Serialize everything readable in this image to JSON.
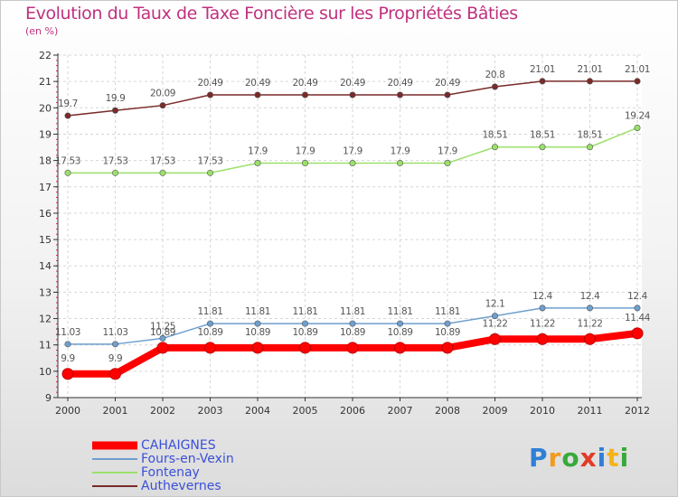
{
  "chart_data": {
    "type": "line",
    "title": "Evolution du Taux de Taxe Foncière sur les Propriétés Bâties",
    "ylabel": "(en %)",
    "xlabel": "",
    "x": [
      "2000",
      "2001",
      "2002",
      "2003",
      "2004",
      "2005",
      "2006",
      "2007",
      "2008",
      "2009",
      "2010",
      "2011",
      "2012"
    ],
    "ylim": [
      9,
      22
    ],
    "yticks": [
      "9",
      "10",
      "11",
      "12",
      "13",
      "14",
      "15",
      "16",
      "17",
      "18",
      "19",
      "20",
      "21",
      "22"
    ],
    "grid": true,
    "series": [
      {
        "name": "CAHAIGNES",
        "color": "#ff0000",
        "values": [
          9.9,
          9.9,
          10.89,
          10.89,
          10.89,
          10.89,
          10.89,
          10.89,
          10.89,
          11.22,
          11.22,
          11.22,
          11.44
        ],
        "labels": [
          "9.9",
          "9.9",
          "10.89",
          "10.89",
          "10.89",
          "10.89",
          "10.89",
          "10.89",
          "10.89",
          "11.22",
          "11.22",
          "11.22",
          "11.44"
        ]
      },
      {
        "name": "Fours-en-Vexin",
        "color": "#6e9fcf",
        "values": [
          11.03,
          11.03,
          11.25,
          11.81,
          11.81,
          11.81,
          11.81,
          11.81,
          11.81,
          12.1,
          12.4,
          12.4,
          12.4
        ],
        "labels": [
          "11.03",
          "11.03",
          "11.25",
          "11.81",
          "11.81",
          "11.81",
          "11.81",
          "11.81",
          "11.81",
          "12.1",
          "12.4",
          "12.4",
          "12.4"
        ]
      },
      {
        "name": "Fontenay",
        "color": "#9be06a",
        "values": [
          17.53,
          17.53,
          17.53,
          17.53,
          17.9,
          17.9,
          17.9,
          17.9,
          17.9,
          18.51,
          18.51,
          18.51,
          19.24
        ],
        "labels": [
          "17.53",
          "17.53",
          "17.53",
          "17.53",
          "17.9",
          "17.9",
          "17.9",
          "17.9",
          "17.9",
          "18.51",
          "18.51",
          "18.51",
          "19.24"
        ]
      },
      {
        "name": "Authevernes",
        "color": "#7a2a2a",
        "values": [
          19.7,
          19.9,
          20.09,
          20.49,
          20.49,
          20.49,
          20.49,
          20.49,
          20.49,
          20.8,
          21.01,
          21.01,
          21.01
        ],
        "labels": [
          "19.7",
          "19.9",
          "20.09",
          "20.49",
          "20.49",
          "20.49",
          "20.49",
          "20.49",
          "20.49",
          "20.8",
          "21.01",
          "21.01",
          "21.01"
        ]
      }
    ]
  },
  "logo": {
    "p": "P",
    "r": "r",
    "o": "o",
    "x": "x",
    "i": "i",
    "t": "t",
    "i2": "i"
  }
}
